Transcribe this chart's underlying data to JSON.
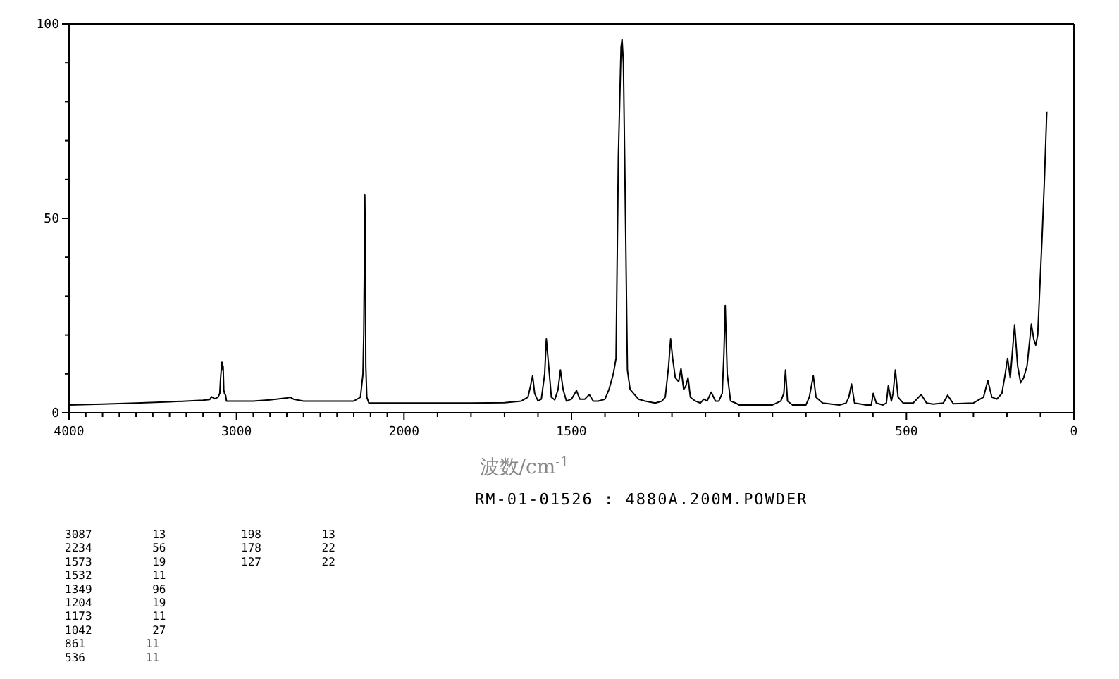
{
  "chart_data": [
    {
      "type": "line",
      "xlabel": "波数/cm$^{-1}$",
      "color": "#000000",
      "xlim": [
        4000,
        2000
      ],
      "ylim": [
        0,
        100
      ],
      "xticks": [
        4000,
        {
          "value": 3900,
          "label": null
        },
        {
          "value": 3800,
          "label": null
        },
        {
          "value": 3700,
          "label": null
        },
        {
          "value": 3600,
          "label": null
        },
        {
          "value": 3500,
          "label": null
        },
        {
          "value": 3400,
          "label": null
        },
        {
          "value": 3300,
          "label": null
        },
        {
          "value": 3200,
          "label": null
        },
        {
          "value": 3100,
          "label": null
        },
        3000,
        {
          "value": 2900,
          "label": null
        },
        {
          "value": 2800,
          "label": null
        },
        {
          "value": 2700,
          "label": null
        },
        {
          "value": 2600,
          "label": null
        },
        {
          "value": 2500,
          "label": null
        },
        {
          "value": 2400,
          "label": null
        },
        {
          "value": 2300,
          "label": null
        },
        {
          "value": 2200,
          "label": null
        },
        {
          "value": 2100,
          "label": null
        },
        2000
      ],
      "yticks": [
        0,
        {
          "value": 10,
          "label": null
        },
        {
          "value": 20,
          "label": null
        },
        {
          "value": 30,
          "label": null
        },
        {
          "value": 40,
          "label": null
        },
        50,
        {
          "value": 60,
          "label": null
        },
        {
          "value": 70,
          "label": null
        },
        {
          "value": 80,
          "label": null
        },
        {
          "value": 90,
          "label": null
        },
        100
      ],
      "x": [
        4000,
        3800,
        3600,
        3400,
        3200,
        3160,
        3149,
        3130,
        3110,
        3100,
        3095,
        3087,
        3084,
        3080,
        3076,
        3072,
        3065,
        3060,
        3000,
        2900,
        2800,
        2700,
        2680,
        2660,
        2600,
        2400,
        2300,
        2260,
        2245,
        2240,
        2236,
        2234,
        2231,
        2228,
        2222,
        2210,
        2100,
        2000
      ],
      "values": [
        2,
        2.2,
        2.5,
        2.8,
        3.2,
        3.4,
        4.1,
        3.6,
        4,
        5,
        9,
        13,
        11,
        12,
        6,
        5,
        4.5,
        3,
        3,
        3,
        3.3,
        3.8,
        4,
        3.5,
        3,
        3,
        3,
        4,
        10,
        21,
        40,
        56,
        45,
        12,
        4,
        2.5,
        2.5,
        2.5
      ],
      "annotations": [
        "RM-01-01526 : 4880A.200M.POWDER",
        "3087 13",
        "2234 56",
        "1573 19",
        "1532 11",
        "1349 96",
        "1204 19",
        "1173 11",
        "1042 27",
        "861 11",
        "536 11",
        "198 13",
        "178 22",
        "127 22"
      ]
    },
    {
      "type": "line",
      "color": "#000000",
      "xlim": [
        2000,
        0
      ],
      "ylim": [
        0,
        100
      ],
      "tick_labels": "x",
      "xticks": [
        {
          "value": 1900,
          "label": null
        },
        {
          "value": 1800,
          "label": null
        },
        {
          "value": 1700,
          "label": null
        },
        {
          "value": 1600,
          "label": null
        },
        1500,
        {
          "value": 1400,
          "label": null
        },
        {
          "value": 1300,
          "label": null
        },
        {
          "value": 1200,
          "label": null
        },
        {
          "value": 1100,
          "label": null
        },
        {
          "value": 1000,
          "label": null
        },
        {
          "value": 900,
          "label": null
        },
        {
          "value": 800,
          "label": null
        },
        {
          "value": 700,
          "label": null
        },
        {
          "value": 600,
          "label": null
        },
        500,
        {
          "value": 400,
          "label": null
        },
        {
          "value": 300,
          "label": null
        },
        {
          "value": 200,
          "label": null
        },
        {
          "value": 100,
          "label": null
        },
        0
      ],
      "x": [
        2000,
        1900,
        1800,
        1700,
        1650,
        1630,
        1622,
        1616,
        1610,
        1600,
        1590,
        1580,
        1575,
        1570,
        1560,
        1550,
        1540,
        1533,
        1525,
        1515,
        1500,
        1485,
        1475,
        1460,
        1447,
        1435,
        1420,
        1400,
        1388,
        1375,
        1367,
        1360,
        1352,
        1349,
        1345,
        1340,
        1333,
        1325,
        1315,
        1300,
        1280,
        1250,
        1230,
        1220,
        1210,
        1204,
        1198,
        1190,
        1180,
        1173,
        1165,
        1158,
        1152,
        1145,
        1130,
        1115,
        1105,
        1095,
        1083,
        1070,
        1060,
        1050,
        1045,
        1041,
        1035,
        1025,
        1010,
        1000,
        950,
        900,
        875,
        866,
        861,
        855,
        840,
        800,
        790,
        778,
        770,
        750,
        700,
        680,
        672,
        664,
        655,
        620,
        605,
        599,
        590,
        570,
        560,
        554,
        545,
        540,
        533,
        525,
        510,
        480,
        456,
        440,
        420,
        390,
        377,
        360,
        300,
        270,
        257,
        245,
        230,
        215,
        205,
        198,
        190,
        177,
        168,
        159,
        150,
        140,
        127,
        120,
        114,
        108,
        101,
        95,
        88,
        81
      ],
      "values": [
        2.5,
        2.5,
        2.5,
        2.6,
        3,
        4,
        7,
        9.5,
        5,
        3,
        3.5,
        10,
        19,
        14,
        4,
        3.3,
        6,
        11,
        6,
        3,
        3.5,
        5.7,
        3.5,
        3.5,
        4.7,
        3,
        3,
        3.5,
        6,
        10,
        14,
        66,
        94,
        96,
        90,
        58,
        11,
        6,
        5,
        3.5,
        3,
        2.5,
        3,
        4,
        12,
        19,
        14,
        9,
        8,
        11.4,
        6,
        7,
        9,
        4,
        3,
        2.5,
        3.5,
        3,
        5.3,
        3,
        3,
        5,
        15,
        27.6,
        10,
        3,
        2.5,
        2,
        2,
        2,
        3,
        5,
        11,
        3,
        2,
        2,
        4,
        9.5,
        4,
        2.5,
        2,
        2.5,
        4,
        7.4,
        2.5,
        2,
        2,
        5,
        2.5,
        2,
        2.5,
        7,
        3,
        5,
        11,
        4,
        2.5,
        2.5,
        4.7,
        2.5,
        2.2,
        2.5,
        4.5,
        2.3,
        2.5,
        4,
        8.3,
        4,
        3.5,
        5,
        10,
        14,
        9,
        22.6,
        12,
        7.7,
        9,
        12,
        22.8,
        19,
        17.4,
        20,
        33.7,
        45,
        60,
        77.4
      ]
    }
  ]
}
